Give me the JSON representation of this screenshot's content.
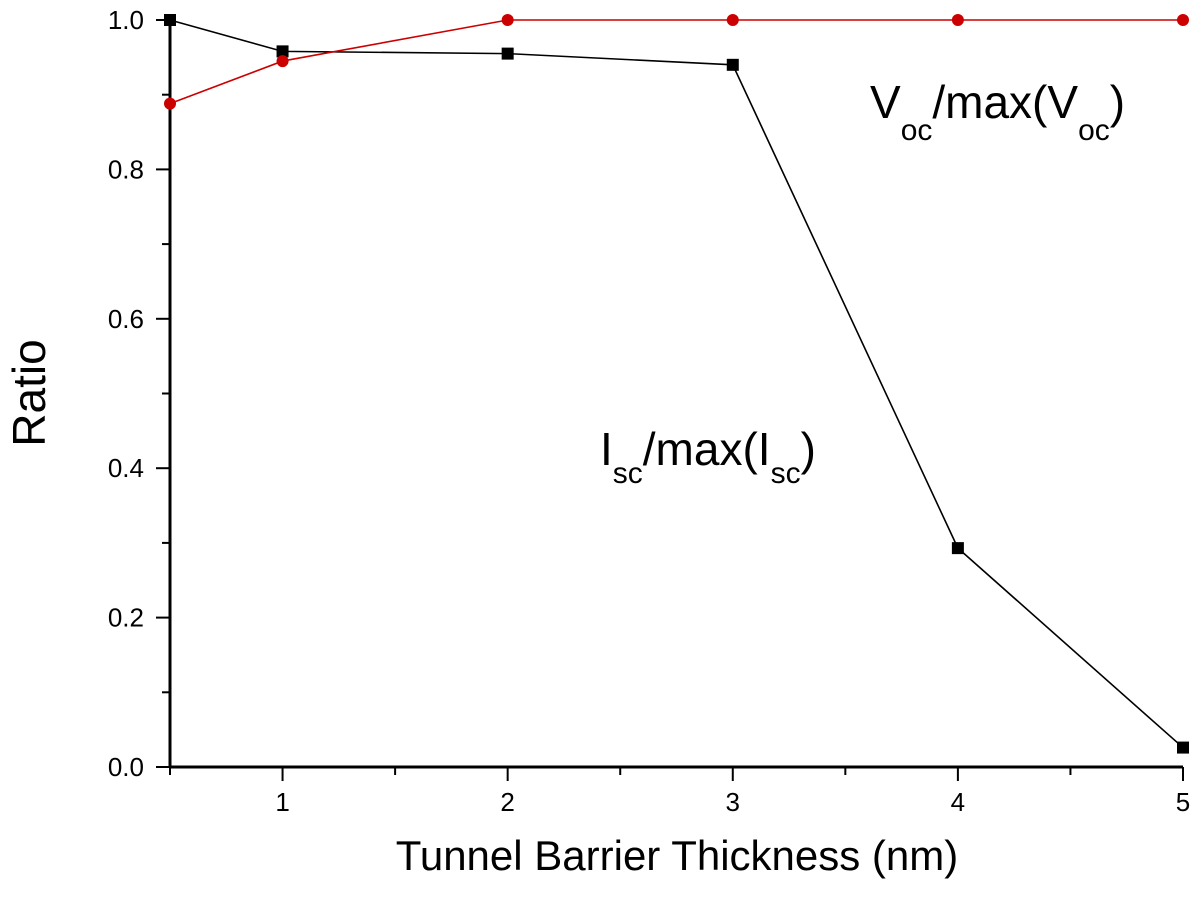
{
  "chart_data": {
    "type": "line",
    "xlabel": "Tunnel Barrier Thickness (nm)",
    "ylabel": "Ratio",
    "xlim": [
      0.5,
      5
    ],
    "ylim": [
      0,
      1
    ],
    "xticks": [
      "1",
      "2",
      "3",
      "4",
      "5"
    ],
    "yticks": [
      "0.0",
      "0.2",
      "0.4",
      "0.6",
      "0.8",
      "1.0"
    ],
    "grid": false,
    "series": [
      {
        "name": "Isc/max(Isc)",
        "marker": "square",
        "color": "#000000",
        "x": [
          0.5,
          1,
          2,
          3,
          4,
          5
        ],
        "y": [
          1.0,
          0.958,
          0.955,
          0.94,
          0.293,
          0.026
        ]
      },
      {
        "name": "Voc/max(Voc)",
        "marker": "circle",
        "color": "#cc0000",
        "x": [
          0.5,
          1,
          2,
          3,
          4,
          5
        ],
        "y": [
          0.888,
          0.945,
          1.0,
          1.0,
          1.0,
          1.0
        ]
      }
    ],
    "annotations": [
      {
        "base": "V",
        "sub": "oc",
        "mid": "/max(V",
        "sub2": "oc",
        "end": ")"
      },
      {
        "base": "I",
        "sub": "sc",
        "mid": "/max(I",
        "sub2": "sc",
        "end": ")"
      }
    ]
  }
}
